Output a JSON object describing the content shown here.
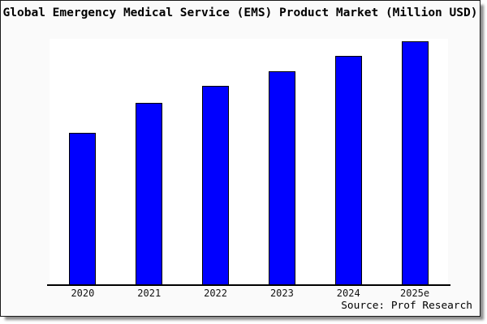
{
  "chart_data": {
    "type": "bar",
    "title": "Global Emergency Medical Service (EMS) Product Market (Million USD)",
    "categories": [
      "2020",
      "2021",
      "2022",
      "2023",
      "2024",
      "2025e"
    ],
    "values": [
      62,
      74,
      81,
      87,
      93,
      99
    ],
    "xlabel": "",
    "ylabel": "",
    "ylim": [
      0,
      100
    ],
    "y_axis_labels_visible": false,
    "grid": false,
    "legend": "none",
    "bar_color": "#0000ff",
    "bar_edge_color": "#000000",
    "background_color": "#fafafa",
    "plot_background_color": "#ffffff",
    "axis_color": "#000000",
    "source_annotation": "Source: Prof Research"
  }
}
